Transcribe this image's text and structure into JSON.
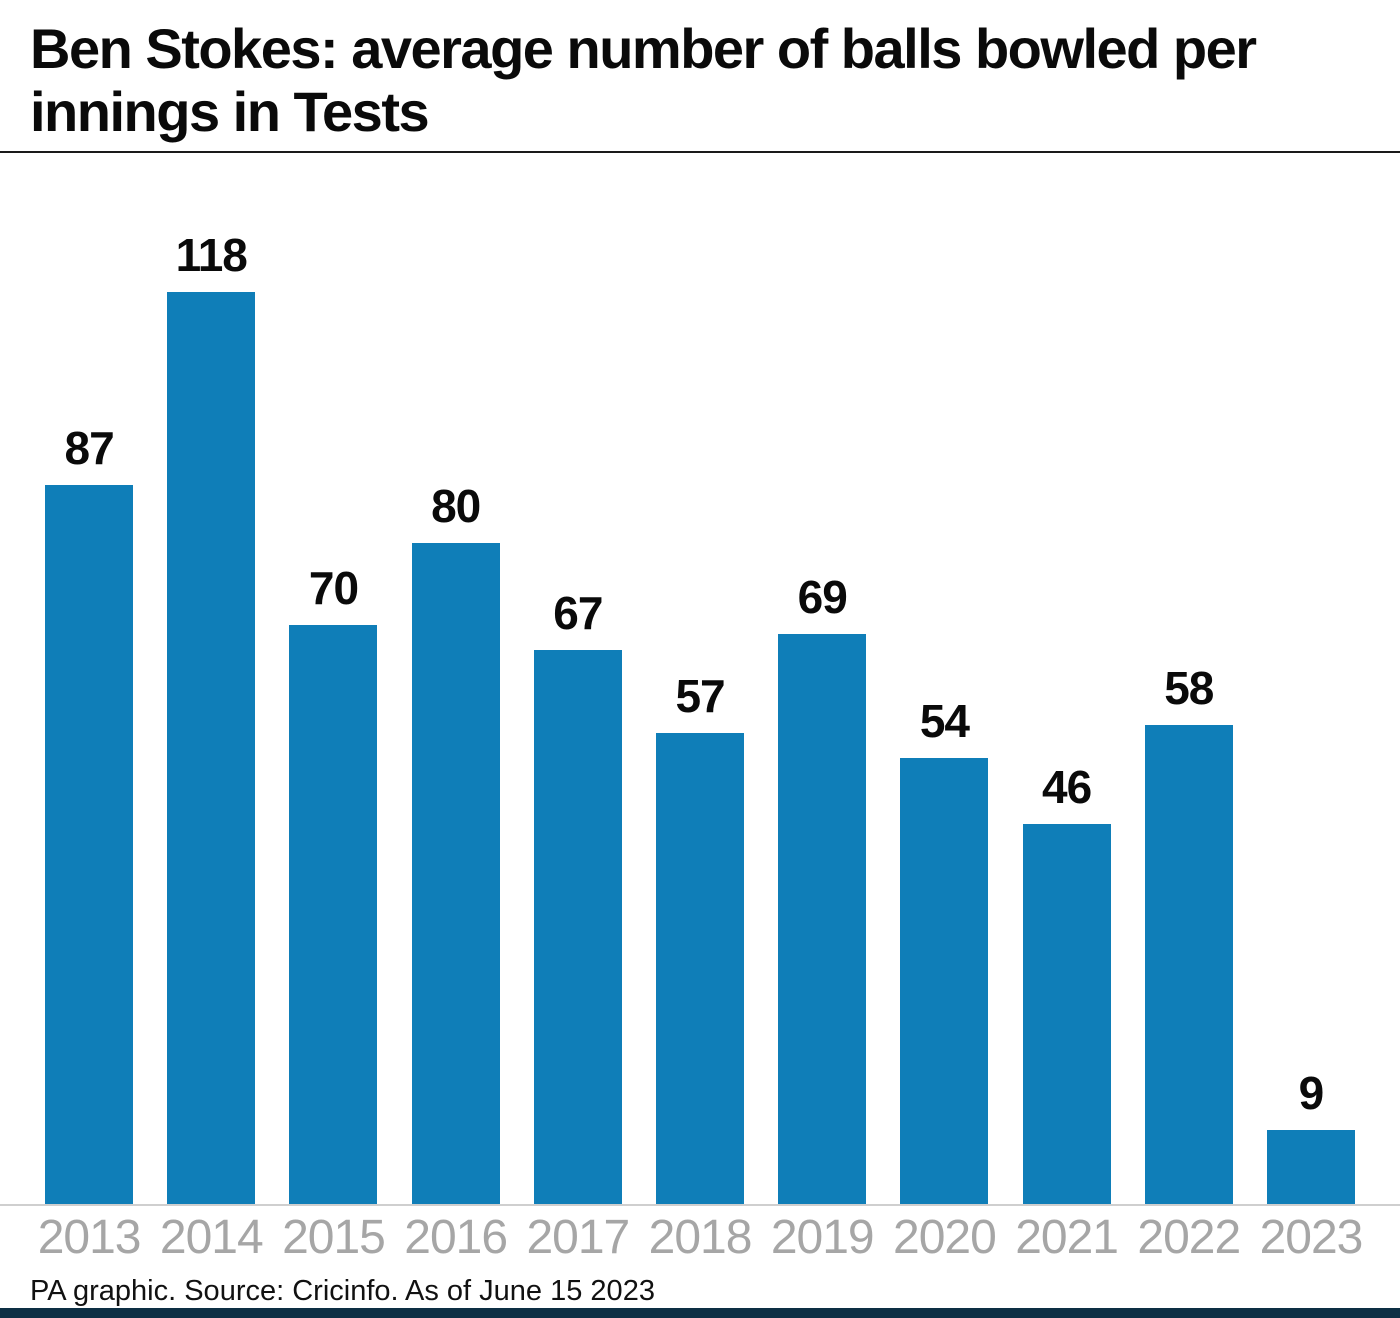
{
  "chart_data": {
    "type": "bar",
    "title": "Ben Stokes: average number of balls bowled per innings in Tests",
    "categories": [
      "2013",
      "2014",
      "2015",
      "2016",
      "2017",
      "2018",
      "2019",
      "2020",
      "2021",
      "2022",
      "2023"
    ],
    "values": [
      87,
      118,
      70,
      80,
      67,
      57,
      69,
      54,
      46,
      58,
      9
    ],
    "xlabel": "",
    "ylabel": "",
    "ylim": [
      0,
      118
    ],
    "grid": false,
    "legend": false,
    "value_labels_shown": true,
    "bar_color": "#0f7eb8",
    "value_label_color": "#0a0a0a",
    "axis_label_color": "#a6a6a6"
  },
  "footer": {
    "source": "PA graphic. Source: Cricinfo. As of June 15 2023"
  },
  "colors": {
    "title_rule": "#1a1a1a",
    "baseline": "#cfcfcf",
    "bottom_bar": "#0d2f44",
    "background": "#ffffff"
  }
}
